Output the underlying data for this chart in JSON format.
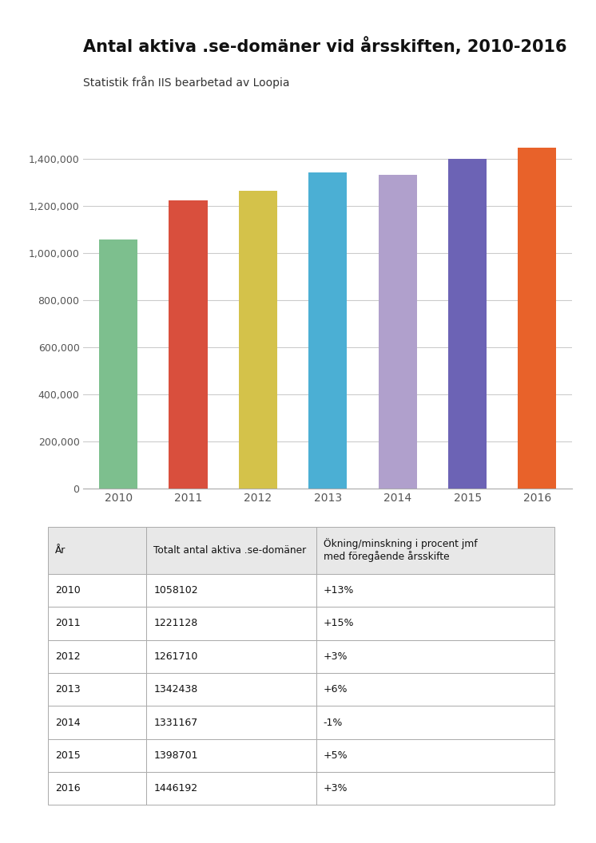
{
  "title": "Antal aktiva .se-domäner vid årsskiften, 2010-2016",
  "subtitle": "Statistik från IIS bearbetad av Loopia",
  "years": [
    "2010",
    "2011",
    "2012",
    "2013",
    "2014",
    "2015",
    "2016"
  ],
  "values": [
    1058102,
    1221128,
    1261710,
    1342438,
    1331167,
    1398701,
    1446192
  ],
  "bar_colors": [
    "#7dbf8e",
    "#d94f3d",
    "#d4c24a",
    "#4bafd4",
    "#b0a0cc",
    "#6c63b5",
    "#e8622a"
  ],
  "ylim": [
    0,
    1500000
  ],
  "yticks": [
    0,
    200000,
    400000,
    600000,
    800000,
    1000000,
    1200000,
    1400000
  ],
  "ytick_labels": [
    "0",
    "200,000",
    "400,000",
    "600,000",
    "800,000",
    "1,000,000",
    "1,200,000",
    "1,400,000"
  ],
  "background_color": "#ffffff",
  "grid_color": "#cccccc",
  "table_headers": [
    "År",
    "Totalt antal aktiva .se-domäner",
    "Ökning/minskning i procent jmf\nmed föregående årsskifte"
  ],
  "table_changes": [
    "+13%",
    "+15%",
    "+3%",
    "+6%",
    "-1%",
    "+5%",
    "+3%"
  ],
  "table_header_bg": "#e8e8e8",
  "table_row_bg": "#ffffff",
  "table_border_color": "#aaaaaa"
}
